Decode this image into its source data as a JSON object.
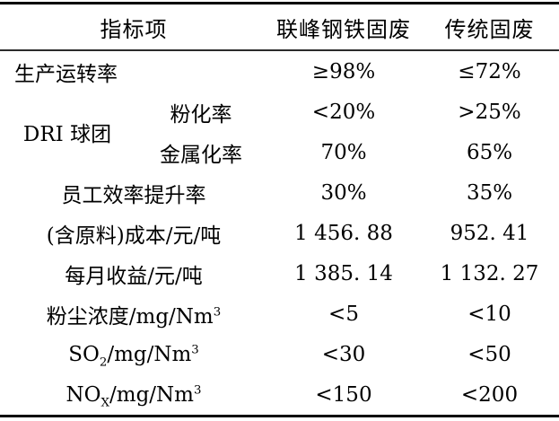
{
  "table": {
    "header": {
      "col_indicator": "指标项",
      "col_lianfeng": "联峰钢铁固废",
      "col_traditional": "传统固废"
    },
    "rows": [
      {
        "cells": [
          {
            "parts": [
              {
                "t": "生产运转率"
              }
            ],
            "colspan": 2,
            "align": "left"
          },
          {
            "parts": [
              {
                "t": "≥98%"
              }
            ]
          },
          {
            "parts": [
              {
                "t": "≤72%"
              }
            ]
          }
        ]
      },
      {
        "cells": [
          {
            "parts": [
              {
                "t": "DRI 球团"
              }
            ],
            "rowspan": 2
          },
          {
            "parts": [
              {
                "t": "粉化率"
              }
            ]
          },
          {
            "parts": [
              {
                "t": "<20%"
              }
            ]
          },
          {
            "parts": [
              {
                "t": ">25%"
              }
            ]
          }
        ]
      },
      {
        "cells": [
          {
            "parts": [
              {
                "t": "金属化率"
              }
            ]
          },
          {
            "parts": [
              {
                "t": "70%"
              }
            ]
          },
          {
            "parts": [
              {
                "t": "65%"
              }
            ]
          }
        ]
      },
      {
        "cells": [
          {
            "parts": [
              {
                "t": "员工效率提升率"
              }
            ],
            "colspan": 2
          },
          {
            "parts": [
              {
                "t": "30%"
              }
            ]
          },
          {
            "parts": [
              {
                "t": "35%"
              }
            ]
          }
        ]
      },
      {
        "cells": [
          {
            "parts": [
              {
                "t": "(含原料)成本/元/吨"
              }
            ],
            "colspan": 2
          },
          {
            "parts": [
              {
                "t": "1 456. 88"
              }
            ]
          },
          {
            "parts": [
              {
                "t": "952. 41"
              }
            ]
          }
        ]
      },
      {
        "cells": [
          {
            "parts": [
              {
                "t": "每月收益/元/吨"
              }
            ],
            "colspan": 2
          },
          {
            "parts": [
              {
                "t": "1 385. 14"
              }
            ]
          },
          {
            "parts": [
              {
                "t": "1 132. 27"
              }
            ]
          }
        ]
      },
      {
        "cells": [
          {
            "parts": [
              {
                "t": "粉尘浓度/mg/Nm"
              },
              {
                "t": "3",
                "pos": "sup"
              }
            ],
            "colspan": 2
          },
          {
            "parts": [
              {
                "t": "<5"
              }
            ]
          },
          {
            "parts": [
              {
                "t": "<10"
              }
            ]
          }
        ]
      },
      {
        "cells": [
          {
            "parts": [
              {
                "t": "SO"
              },
              {
                "t": "2",
                "pos": "sub"
              },
              {
                "t": "/mg/Nm"
              },
              {
                "t": "3",
                "pos": "sup"
              }
            ],
            "colspan": 2
          },
          {
            "parts": [
              {
                "t": "<30"
              }
            ]
          },
          {
            "parts": [
              {
                "t": "<50"
              }
            ]
          }
        ]
      },
      {
        "cells": [
          {
            "parts": [
              {
                "t": "NO"
              },
              {
                "t": "X",
                "pos": "sub"
              },
              {
                "t": "/mg/Nm"
              },
              {
                "t": "3",
                "pos": "sup"
              }
            ],
            "colspan": 2
          },
          {
            "parts": [
              {
                "t": "<150"
              }
            ]
          },
          {
            "parts": [
              {
                "t": "<200"
              }
            ]
          }
        ]
      }
    ]
  },
  "colors": {
    "border": "#000000",
    "header_rule": "#2b2b2b",
    "text": "#000000",
    "background": "#ffffff"
  }
}
